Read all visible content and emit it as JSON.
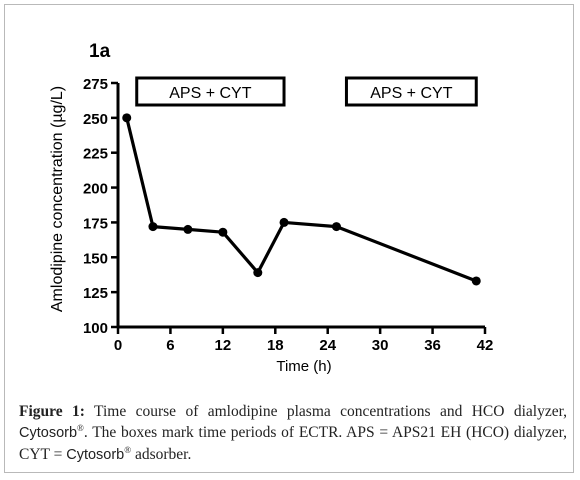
{
  "chart_data": {
    "type": "line",
    "panel_label": "1a",
    "xlabel": "Time (h)",
    "ylabel": "Amlodipine concentration (µg/L)",
    "xlim": [
      0,
      42
    ],
    "ylim": [
      100,
      275
    ],
    "xticks": [
      0,
      6,
      12,
      18,
      24,
      30,
      36,
      42
    ],
    "yticks": [
      100,
      125,
      150,
      175,
      200,
      225,
      250,
      275
    ],
    "series": [
      {
        "x": [
          1,
          4,
          8,
          12,
          16,
          19,
          25,
          41
        ],
        "y": [
          250,
          172,
          170,
          168,
          139,
          175,
          172,
          133
        ],
        "color": "#000000"
      }
    ],
    "period_boxes": [
      {
        "label": "APS + CYT",
        "x_start": 1,
        "x_end": 19
      },
      {
        "label": "APS + CYT",
        "x_start": 25,
        "x_end": 41
      }
    ],
    "grid": false,
    "legend": "none"
  },
  "caption": {
    "label": "Figure 1:",
    "text_1": " Time course of amlodipine plasma concentrations and HCO dialyzer, ",
    "cytosorb_1": "Cytosorb",
    "text_2": ". The boxes mark time periods of ECTR. APS = APS21 EH (HCO) dialyzer, CYT = ",
    "cytosorb_2": "Cytosorb",
    "text_3": " adsorber.",
    "registered": "®"
  }
}
